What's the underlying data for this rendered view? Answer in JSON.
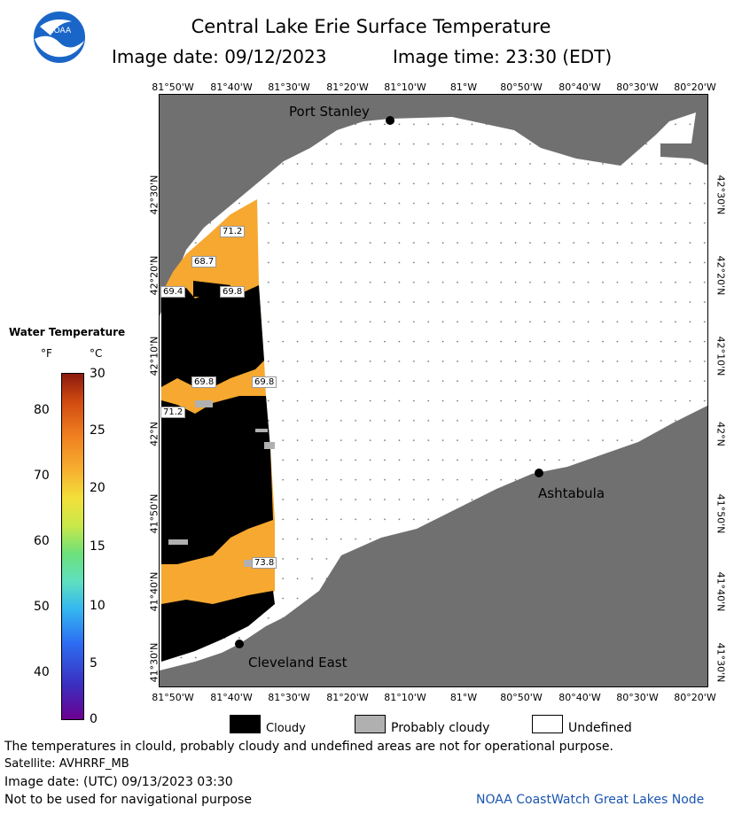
{
  "header": {
    "title": "Central Lake Erie Surface Temperature",
    "image_date": "Image date: 09/12/2023",
    "image_time": "Image time: 23:30 (EDT)"
  },
  "axes": {
    "lon_ticks": [
      "81°50'W",
      "81°40'W",
      "81°30'W",
      "81°20'W",
      "81°10'W",
      "81°W",
      "80°50'W",
      "80°40'W",
      "80°30'W",
      "80°20'W"
    ],
    "lat_ticks": [
      "42°30'N",
      "42°20'N",
      "42°10'N",
      "42°N",
      "41°50'N",
      "41°40'N",
      "41°30'N"
    ]
  },
  "places": {
    "port_stanley": "Port Stanley",
    "ashtabula": "Ashtabula",
    "cleveland_east": "Cleveland East"
  },
  "temp_labels": [
    "71.2",
    "68.7",
    "69.4",
    "69.8",
    "69.8",
    "69.8",
    "71.2",
    "73.8"
  ],
  "legend": {
    "title": "Water Temperature",
    "unit_f": "°F",
    "unit_c": "°C",
    "f_ticks": [
      "80",
      "70",
      "60",
      "50",
      "40"
    ],
    "c_ticks": [
      "30",
      "25",
      "20",
      "15",
      "10",
      "5",
      "0"
    ],
    "cloudy": "Cloudy",
    "probably_cloudy": "Probably cloudy",
    "undefined": "Undefined"
  },
  "footer": {
    "disclaimer": "The temperatures in clould, probably cloudy and undefined areas are not for operational purpose.",
    "satellite": "Satellite: AVHRRF_MB",
    "utc_date": "Image date: (UTC) 09/13/2023  03:30",
    "nav_warning": "Not to be used for navigational purpose",
    "credit": "NOAA CoastWatch Great Lakes Node"
  },
  "colors": {
    "land": "#707070",
    "cloud": "#000000",
    "water_warm": "#f6a830",
    "undefined": "#ffffff"
  }
}
